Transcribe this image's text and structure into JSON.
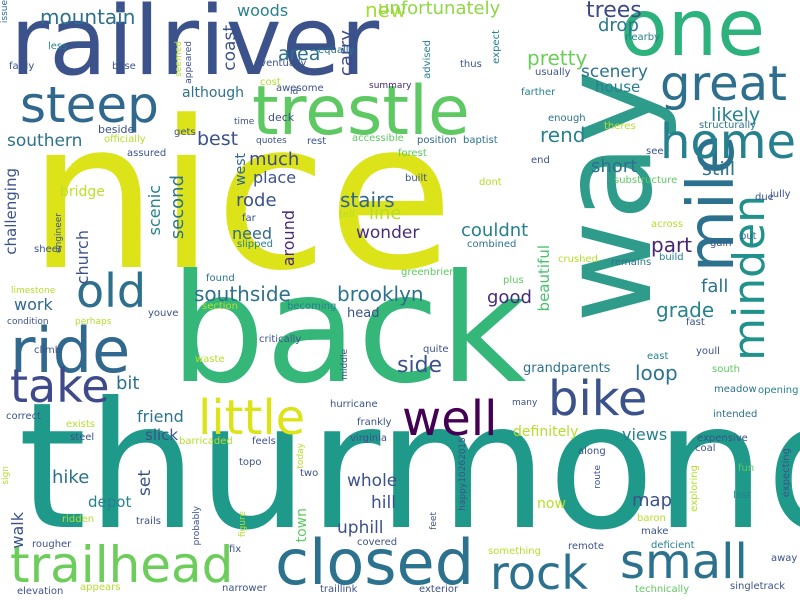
{
  "words": [
    {
      "text": "nice",
      "weight": 1.0,
      "color": "#dde319"
    },
    {
      "text": "thurmond",
      "weight": 0.95,
      "color": "#1f9a8a"
    },
    {
      "text": "back",
      "weight": 0.85,
      "color": "#35b779"
    },
    {
      "text": "way",
      "weight": 0.8,
      "color": "#2f9c8b"
    },
    {
      "text": "railriver",
      "weight": 0.75,
      "color": "#3b528b"
    },
    {
      "text": "one",
      "weight": 0.55,
      "color": "#2db27d"
    },
    {
      "text": "trestle",
      "weight": 0.5,
      "color": "#5ec962"
    },
    {
      "text": "mile",
      "weight": 0.5,
      "color": "#2c728e"
    },
    {
      "text": "closed",
      "weight": 0.45,
      "color": "#2c728e"
    },
    {
      "text": "ride",
      "weight": 0.45,
      "color": "#31688e"
    },
    {
      "text": "trailhead",
      "weight": 0.45,
      "color": "#6ccd5a"
    },
    {
      "text": "steep",
      "weight": 0.4,
      "color": "#31688e"
    },
    {
      "text": "great",
      "weight": 0.35,
      "color": "#2e6f8e"
    },
    {
      "text": "home",
      "weight": 0.35,
      "color": "#26818e"
    },
    {
      "text": "bike",
      "weight": 0.35,
      "color": "#3b528b"
    },
    {
      "text": "small",
      "weight": 0.35,
      "color": "#2c728e"
    },
    {
      "text": "little",
      "weight": 0.35,
      "color": "#dde319"
    },
    {
      "text": "well",
      "weight": 0.35,
      "color": "#440154"
    },
    {
      "text": "old",
      "weight": 0.3,
      "color": "#2d708e"
    },
    {
      "text": "take",
      "weight": 0.3,
      "color": "#3e4a89"
    },
    {
      "text": "rock",
      "weight": 0.3,
      "color": "#2c728e"
    },
    {
      "text": "minden",
      "weight": 0.3,
      "color": "#21918c"
    },
    {
      "text": "mountain",
      "weight": 0.15,
      "color": "#2c728e"
    },
    {
      "text": "woods",
      "weight": 0.12,
      "color": "#26828e"
    },
    {
      "text": "new",
      "weight": 0.12,
      "color": "#a5db36"
    },
    {
      "text": "unfortunately",
      "weight": 0.12,
      "color": "#8fd744"
    },
    {
      "text": "trees",
      "weight": 0.14,
      "color": "#3e4989"
    },
    {
      "text": "drop",
      "weight": 0.12,
      "color": "#2a788e"
    },
    {
      "text": "coast",
      "weight": 0.12,
      "color": "#3b528b"
    },
    {
      "text": "area",
      "weight": 0.12,
      "color": "#2c728e"
    },
    {
      "text": "carry",
      "weight": 0.12,
      "color": "#3e4a89"
    },
    {
      "text": "pretty",
      "weight": 0.14,
      "color": "#6ccd5a"
    },
    {
      "text": "scenery",
      "weight": 0.12,
      "color": "#2c728e"
    },
    {
      "text": "house",
      "weight": 0.1,
      "color": "#26818e"
    },
    {
      "text": "although",
      "weight": 0.1,
      "color": "#2c728e"
    },
    {
      "text": "likely",
      "weight": 0.12,
      "color": "#26828e"
    },
    {
      "text": "southern",
      "weight": 0.12,
      "color": "#2c728e"
    },
    {
      "text": "best",
      "weight": 0.14,
      "color": "#3b528b"
    },
    {
      "text": "rend",
      "weight": 0.14,
      "color": "#26828e"
    },
    {
      "text": "much",
      "weight": 0.14,
      "color": "#3e4a89"
    },
    {
      "text": "short",
      "weight": 0.14,
      "color": "#2c728e"
    },
    {
      "text": "still",
      "weight": 0.14,
      "color": "#2c728e"
    },
    {
      "text": "west",
      "weight": 0.12,
      "color": "#31688e"
    },
    {
      "text": "place",
      "weight": 0.12,
      "color": "#3b528b"
    },
    {
      "text": "rode",
      "weight": 0.14,
      "color": "#3b528b"
    },
    {
      "text": "scenic",
      "weight": 0.12,
      "color": "#26818e"
    },
    {
      "text": "second",
      "weight": 0.14,
      "color": "#2c728e"
    },
    {
      "text": "stairs",
      "weight": 0.14,
      "color": "#31688e"
    },
    {
      "text": "line",
      "weight": 0.14,
      "color": "#b5de2b"
    },
    {
      "text": "wonder",
      "weight": 0.14,
      "color": "#472d7b"
    },
    {
      "text": "couldnt",
      "weight": 0.14,
      "color": "#26818e"
    },
    {
      "text": "part",
      "weight": 0.14,
      "color": "#482475"
    },
    {
      "text": "challenging",
      "weight": 0.12,
      "color": "#3b528b"
    },
    {
      "text": "bridge",
      "weight": 0.1,
      "color": "#bddf26"
    },
    {
      "text": "church",
      "weight": 0.12,
      "color": "#3b528b"
    },
    {
      "text": "need",
      "weight": 0.12,
      "color": "#31688e"
    },
    {
      "text": "around",
      "weight": 0.12,
      "color": "#482878"
    },
    {
      "text": "fall",
      "weight": 0.12,
      "color": "#2c728e"
    },
    {
      "text": "southside",
      "weight": 0.16,
      "color": "#2c728e"
    },
    {
      "text": "brooklyn",
      "weight": 0.16,
      "color": "#2c728e"
    },
    {
      "text": "good",
      "weight": 0.14,
      "color": "#472c7a"
    },
    {
      "text": "grade",
      "weight": 0.14,
      "color": "#26828e"
    },
    {
      "text": "beautiful",
      "weight": 0.12,
      "color": "#4ac16d"
    },
    {
      "text": "work",
      "weight": 0.12,
      "color": "#31688e"
    },
    {
      "text": "side",
      "weight": 0.16,
      "color": "#3b528b"
    },
    {
      "text": "grandparents",
      "weight": 0.1,
      "color": "#2c728e"
    },
    {
      "text": "loop",
      "weight": 0.14,
      "color": "#2c728e"
    },
    {
      "text": "bit",
      "weight": 0.14,
      "color": "#2c728e"
    },
    {
      "text": "friend",
      "weight": 0.12,
      "color": "#2c728e"
    },
    {
      "text": "definitely",
      "weight": 0.12,
      "color": "#b5de2b"
    },
    {
      "text": "views",
      "weight": 0.12,
      "color": "#26818e"
    },
    {
      "text": "slick",
      "weight": 0.12,
      "color": "#3b528b"
    },
    {
      "text": "hike",
      "weight": 0.14,
      "color": "#2c728e"
    },
    {
      "text": "set",
      "weight": 0.12,
      "color": "#3b528b"
    },
    {
      "text": "whole",
      "weight": 0.14,
      "color": "#3b528b"
    },
    {
      "text": "hill",
      "weight": 0.14,
      "color": "#3b528b"
    },
    {
      "text": "map",
      "weight": 0.14,
      "color": "#3b528b"
    },
    {
      "text": "depot",
      "weight": 0.12,
      "color": "#26818e"
    },
    {
      "text": "walk",
      "weight": 0.12,
      "color": "#3b528b"
    },
    {
      "text": "town",
      "weight": 0.1,
      "color": "#5ec962"
    },
    {
      "text": "uphill",
      "weight": 0.12,
      "color": "#3b528b"
    },
    {
      "text": "now",
      "weight": 0.1,
      "color": "#b5de2b"
    },
    {
      "text": "equally",
      "weight": 0.06,
      "color": "#2c728e"
    },
    {
      "text": "eventually",
      "weight": 0.06,
      "color": "#3b528b"
    },
    {
      "text": "summary",
      "weight": 0.05,
      "color": "#482878"
    },
    {
      "text": "id",
      "weight": 0.05,
      "color": "#3b528b"
    },
    {
      "text": "awesome",
      "weight": 0.05,
      "color": "#3b528b"
    },
    {
      "text": "deck",
      "weight": 0.06,
      "color": "#3b528b"
    },
    {
      "text": "time",
      "weight": 0.05,
      "color": "#3b528b"
    },
    {
      "text": "quotes",
      "weight": 0.05,
      "color": "#3b528b"
    },
    {
      "text": "rest",
      "weight": 0.05,
      "color": "#3b528b"
    },
    {
      "text": "accessible",
      "weight": 0.05,
      "color": "#5ec962"
    },
    {
      "text": "position",
      "weight": 0.05,
      "color": "#31688e"
    },
    {
      "text": "baptist",
      "weight": 0.05,
      "color": "#2c728e"
    },
    {
      "text": "forest",
      "weight": 0.05,
      "color": "#5ec962"
    },
    {
      "text": "built",
      "weight": 0.05,
      "color": "#3b528b"
    },
    {
      "text": "dont",
      "weight": 0.05,
      "color": "#b5de2b"
    },
    {
      "text": "end",
      "weight": 0.05,
      "color": "#3b528b"
    },
    {
      "text": "see",
      "weight": 0.05,
      "color": "#3b528b"
    },
    {
      "text": "theres",
      "weight": 0.05,
      "color": "#b5de2b"
    },
    {
      "text": "enough",
      "weight": 0.05,
      "color": "#2c728e"
    },
    {
      "text": "farther",
      "weight": 0.05,
      "color": "#26818e"
    },
    {
      "text": "usually",
      "weight": 0.05,
      "color": "#3b528b"
    },
    {
      "text": "thus",
      "weight": 0.05,
      "color": "#3b528b"
    },
    {
      "text": "advised",
      "weight": 0.05,
      "color": "#26818e"
    },
    {
      "text": "nearby",
      "weight": 0.05,
      "color": "#26818e"
    },
    {
      "text": "expect",
      "weight": 0.05,
      "color": "#26818e"
    },
    {
      "text": "cost",
      "weight": 0.05,
      "color": "#b5de2b"
    },
    {
      "text": "structurally",
      "weight": 0.05,
      "color": "#2c728e"
    },
    {
      "text": "substructure",
      "weight": 0.05,
      "color": "#5ec962"
    },
    {
      "text": "jully",
      "weight": 0.05,
      "color": "#3b528b"
    },
    {
      "text": "due",
      "weight": 0.05,
      "color": "#3b528b"
    },
    {
      "text": "across",
      "weight": 0.05,
      "color": "#b5de2b"
    },
    {
      "text": "put",
      "weight": 0.05,
      "color": "#2c728e"
    },
    {
      "text": "gain",
      "weight": 0.05,
      "color": "#3b528b"
    },
    {
      "text": "build",
      "weight": 0.05,
      "color": "#26818e"
    },
    {
      "text": "remains",
      "weight": 0.05,
      "color": "#2c728e"
    },
    {
      "text": "crushed",
      "weight": 0.05,
      "color": "#b5de2b"
    },
    {
      "text": "combined",
      "weight": 0.05,
      "color": "#2c728e"
    },
    {
      "text": "tell",
      "weight": 0.05,
      "color": "#b5de2b"
    },
    {
      "text": "far",
      "weight": 0.05,
      "color": "#3b528b"
    },
    {
      "text": "slipped",
      "weight": 0.05,
      "color": "#26818e"
    },
    {
      "text": "found",
      "weight": 0.05,
      "color": "#2c728e"
    },
    {
      "text": "section",
      "weight": 0.05,
      "color": "#b5de2b"
    },
    {
      "text": "becoming",
      "weight": 0.05,
      "color": "#26818e"
    },
    {
      "text": "greenbrier",
      "weight": 0.05,
      "color": "#5ec962"
    },
    {
      "text": "plus",
      "weight": 0.05,
      "color": "#5ec962"
    },
    {
      "text": "fast",
      "weight": 0.05,
      "color": "#3b528b"
    },
    {
      "text": "youll",
      "weight": 0.05,
      "color": "#3b528b"
    },
    {
      "text": "east",
      "weight": 0.05,
      "color": "#26818e"
    },
    {
      "text": "south",
      "weight": 0.05,
      "color": "#5ec962"
    },
    {
      "text": "meadow",
      "weight": 0.05,
      "color": "#2c728e"
    },
    {
      "text": "opening",
      "weight": 0.05,
      "color": "#26818e"
    },
    {
      "text": "intended",
      "weight": 0.05,
      "color": "#2c728e"
    },
    {
      "text": "expensive",
      "weight": 0.05,
      "color": "#3b528b"
    },
    {
      "text": "coal",
      "weight": 0.05,
      "color": "#3b528b"
    },
    {
      "text": "expecting",
      "weight": 0.05,
      "color": "#3b528b"
    },
    {
      "text": "fun",
      "weight": 0.05,
      "color": "#5ec962"
    },
    {
      "text": "last",
      "weight": 0.05,
      "color": "#26818e"
    },
    {
      "text": "exploring",
      "weight": 0.05,
      "color": "#b5de2b"
    },
    {
      "text": "baron",
      "weight": 0.05,
      "color": "#b5de2b"
    },
    {
      "text": "make",
      "weight": 0.05,
      "color": "#3b528b"
    },
    {
      "text": "deficient",
      "weight": 0.05,
      "color": "#26818e"
    },
    {
      "text": "remote",
      "weight": 0.05,
      "color": "#3b528b"
    },
    {
      "text": "technically",
      "weight": 0.05,
      "color": "#5ec962"
    },
    {
      "text": "singletrack",
      "weight": 0.05,
      "color": "#3b528b"
    },
    {
      "text": "away",
      "weight": 0.05,
      "color": "#3b528b"
    },
    {
      "text": "issue",
      "weight": 0.05,
      "color": "#2c728e"
    },
    {
      "text": "less",
      "weight": 0.05,
      "color": "#26818e"
    },
    {
      "text": "fairly",
      "weight": 0.05,
      "color": "#3b528b"
    },
    {
      "text": "base",
      "weight": 0.05,
      "color": "#3b528b"
    },
    {
      "text": "seemed",
      "weight": 0.05,
      "color": "#b5de2b"
    },
    {
      "text": "appeared",
      "weight": 0.05,
      "color": "#3b528b"
    },
    {
      "text": "beside",
      "weight": 0.06,
      "color": "#3b528b"
    },
    {
      "text": "officially",
      "weight": 0.05,
      "color": "#b5de2b"
    },
    {
      "text": "assured",
      "weight": 0.05,
      "color": "#3b528b"
    },
    {
      "text": "gets",
      "weight": 0.05,
      "color": "#3b528b"
    },
    {
      "text": "engineer",
      "weight": 0.05,
      "color": "#3b528b"
    },
    {
      "text": "sheer",
      "weight": 0.05,
      "color": "#3b528b"
    },
    {
      "text": "limestone",
      "weight": 0.05,
      "color": "#b5de2b"
    },
    {
      "text": "condition",
      "weight": 0.05,
      "color": "#3b528b"
    },
    {
      "text": "perhaps",
      "weight": 0.05,
      "color": "#b5de2b"
    },
    {
      "text": "youve",
      "weight": 0.05,
      "color": "#3b528b"
    },
    {
      "text": "climb",
      "weight": 0.05,
      "color": "#3b528b"
    },
    {
      "text": "critically",
      "weight": 0.05,
      "color": "#3b528b"
    },
    {
      "text": "middle",
      "weight": 0.05,
      "color": "#3b528b"
    },
    {
      "text": "quite",
      "weight": 0.05,
      "color": "#3b528b"
    },
    {
      "text": "head",
      "weight": 0.08,
      "color": "#3b528b"
    },
    {
      "text": "waste",
      "weight": 0.05,
      "color": "#b5de2b"
    },
    {
      "text": "hurricane",
      "weight": 0.05,
      "color": "#3b528b"
    },
    {
      "text": "frankly",
      "weight": 0.05,
      "color": "#3b528b"
    },
    {
      "text": "virginia",
      "weight": 0.05,
      "color": "#3b528b"
    },
    {
      "text": "many",
      "weight": 0.05,
      "color": "#3b528b"
    },
    {
      "text": "correct",
      "weight": 0.05,
      "color": "#3b528b"
    },
    {
      "text": "exists",
      "weight": 0.05,
      "color": "#b5de2b"
    },
    {
      "text": "steel",
      "weight": 0.05,
      "color": "#3b528b"
    },
    {
      "text": "barricaded",
      "weight": 0.05,
      "color": "#b5de2b"
    },
    {
      "text": "feels",
      "weight": 0.05,
      "color": "#3b528b"
    },
    {
      "text": "topo",
      "weight": 0.05,
      "color": "#3b528b"
    },
    {
      "text": "today",
      "weight": 0.05,
      "color": "#b5de2b"
    },
    {
      "text": "two",
      "weight": 0.05,
      "color": "#3b528b"
    },
    {
      "text": "along",
      "weight": 0.05,
      "color": "#3b528b"
    },
    {
      "text": "sign",
      "weight": 0.05,
      "color": "#b5de2b"
    },
    {
      "text": "ridden",
      "weight": 0.05,
      "color": "#b5de2b"
    },
    {
      "text": "trails",
      "weight": 0.05,
      "color": "#3b528b"
    },
    {
      "text": "figure",
      "weight": 0.05,
      "color": "#b5de2b"
    },
    {
      "text": "probably",
      "weight": 0.05,
      "color": "#3b528b"
    },
    {
      "text": "happy10262015",
      "weight": 0.05,
      "color": "#3b528b"
    },
    {
      "text": "feet",
      "weight": 0.05,
      "color": "#3b528b"
    },
    {
      "text": "route",
      "weight": 0.05,
      "color": "#3b528b"
    },
    {
      "text": "rougher",
      "weight": 0.05,
      "color": "#3b528b"
    },
    {
      "text": "fix",
      "weight": 0.05,
      "color": "#3b528b"
    },
    {
      "text": "covered",
      "weight": 0.05,
      "color": "#3b528b"
    },
    {
      "text": "something",
      "weight": 0.05,
      "color": "#b5de2b"
    },
    {
      "text": "elevation",
      "weight": 0.05,
      "color": "#3b528b"
    },
    {
      "text": "appears",
      "weight": 0.05,
      "color": "#b5de2b"
    },
    {
      "text": "narrower",
      "weight": 0.05,
      "color": "#3b528b"
    },
    {
      "text": "traillink",
      "weight": 0.05,
      "color": "#3b528b"
    },
    {
      "text": "exterior",
      "weight": 0.05,
      "color": "#3b528b"
    }
  ]
}
